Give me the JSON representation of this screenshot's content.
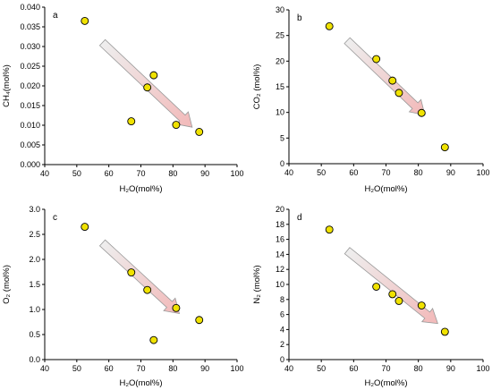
{
  "chart_data": [
    {
      "type": "scatter",
      "panel_label": "a",
      "xlabel": "H₂O(mol%)",
      "ylabel": "CH₄(mol%)",
      "xlim": [
        40,
        100
      ],
      "ylim": [
        0,
        0.04
      ],
      "xticks": [
        "40",
        "50",
        "60",
        "70",
        "80",
        "90",
        "100"
      ],
      "yticks": [
        "0.000",
        "0.005",
        "0.010",
        "0.015",
        "0.020",
        "0.025",
        "0.030",
        "0.035",
        "0.040"
      ],
      "points": [
        {
          "x": 52.5,
          "y": 0.0365
        },
        {
          "x": 67,
          "y": 0.011
        },
        {
          "x": 72,
          "y": 0.0196
        },
        {
          "x": 74,
          "y": 0.0227
        },
        {
          "x": 81,
          "y": 0.0101
        },
        {
          "x": 88.2,
          "y": 0.0083
        }
      ],
      "arrow": {
        "from": [
          58,
          0.031
        ],
        "to": [
          86,
          0.0095
        ]
      },
      "grid": false
    },
    {
      "type": "scatter",
      "panel_label": "b",
      "xlabel": "H₂O(mol%)",
      "ylabel": "CO₂ (mol%)",
      "xlim": [
        40,
        100
      ],
      "ylim": [
        0,
        30
      ],
      "xticks": [
        "40",
        "50",
        "60",
        "70",
        "80",
        "90",
        "100"
      ],
      "yticks": [
        "0",
        "5",
        "10",
        "15",
        "20",
        "25",
        "30"
      ],
      "points": [
        {
          "x": 52.5,
          "y": 26.8
        },
        {
          "x": 67,
          "y": 20.4
        },
        {
          "x": 72,
          "y": 16.2
        },
        {
          "x": 74,
          "y": 13.8
        },
        {
          "x": 81,
          "y": 9.9
        },
        {
          "x": 88.2,
          "y": 3.2
        }
      ],
      "arrow": {
        "from": [
          58,
          24
        ],
        "to": [
          82,
          9.5
        ]
      },
      "grid": false
    },
    {
      "type": "scatter",
      "panel_label": "c",
      "xlabel": "H₂O(mol%)",
      "ylabel": "O₂ (mol%)",
      "xlim": [
        40,
        100
      ],
      "ylim": [
        0,
        3
      ],
      "xticks": [
        "40",
        "50",
        "60",
        "70",
        "80",
        "90",
        "100"
      ],
      "yticks": [
        "0.0",
        "0.5",
        "1.0",
        "1.5",
        "2.0",
        "2.5",
        "3.0"
      ],
      "points": [
        {
          "x": 52.5,
          "y": 2.65
        },
        {
          "x": 67,
          "y": 1.74
        },
        {
          "x": 72,
          "y": 1.39
        },
        {
          "x": 74,
          "y": 0.39
        },
        {
          "x": 81,
          "y": 1.03
        },
        {
          "x": 88.2,
          "y": 0.79
        }
      ],
      "arrow": {
        "from": [
          58,
          2.33
        ],
        "to": [
          82,
          0.92
        ]
      },
      "grid": false
    },
    {
      "type": "scatter",
      "panel_label": "d",
      "xlabel": "H₂O(mol%)",
      "ylabel": "N₂ (mol%)",
      "xlim": [
        40,
        100
      ],
      "ylim": [
        0,
        20
      ],
      "xticks": [
        "40",
        "50",
        "60",
        "70",
        "80",
        "90",
        "100"
      ],
      "yticks": [
        "0",
        "2",
        "4",
        "6",
        "8",
        "10",
        "12",
        "14",
        "16",
        "18",
        "20"
      ],
      "points": [
        {
          "x": 52.5,
          "y": 17.3
        },
        {
          "x": 67,
          "y": 9.7
        },
        {
          "x": 72,
          "y": 8.7
        },
        {
          "x": 74,
          "y": 7.8
        },
        {
          "x": 81,
          "y": 7.2
        },
        {
          "x": 88.2,
          "y": 3.7
        }
      ],
      "arrow": {
        "from": [
          58,
          14.5
        ],
        "to": [
          86,
          4.8
        ]
      },
      "grid": false
    }
  ],
  "colors": {
    "marker_fill": "#f0e200",
    "marker_stroke": "#000000",
    "arrow_fill_start": "#eeeeee",
    "arrow_fill_end": "#f2b9b9",
    "arrow_stroke": "#9a9a9a",
    "axis": "#000000"
  }
}
